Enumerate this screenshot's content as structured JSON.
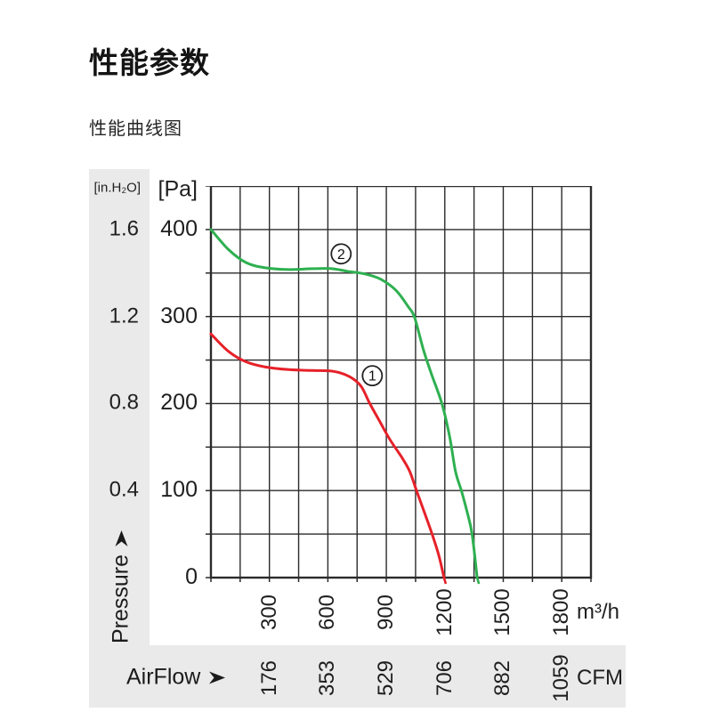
{
  "page": {
    "title": "性能参数",
    "subtitle": "性能曲线图"
  },
  "chart_data": {
    "type": "line",
    "title": "性能曲线图",
    "x_axis": {
      "name": "AirFlow",
      "unit_primary": "m³/h",
      "unit_secondary": "CFM",
      "range_m3h": [
        0,
        1950
      ],
      "grid_step_m3h": 150,
      "ticks_m3h": [
        300,
        600,
        900,
        1200,
        1500,
        1800
      ],
      "ticks_cfm": [
        176,
        353,
        529,
        706,
        882,
        1059
      ]
    },
    "y_axis": {
      "name": "Pressure",
      "unit_primary": "[Pa]",
      "unit_secondary": "[in.H₂O]",
      "range_pa": [
        0,
        450
      ],
      "grid_step_pa": 50,
      "ticks_pa": [
        400,
        300,
        200,
        100,
        0
      ],
      "ticks_inh2o": [
        "1.6",
        "1.2",
        "0.8",
        "0.4"
      ]
    },
    "grid": true,
    "legend_position": "on-curve-circled-numbers",
    "series": [
      {
        "id": "curve-1",
        "label": "1",
        "color": "#e62129",
        "marker_pos_m3h_pa": [
          828,
          232
        ],
        "points_m3h_pa": [
          [
            0,
            280
          ],
          [
            90,
            260
          ],
          [
            180,
            248
          ],
          [
            280,
            242
          ],
          [
            400,
            239
          ],
          [
            520,
            238
          ],
          [
            630,
            237
          ],
          [
            710,
            231
          ],
          [
            770,
            220
          ],
          [
            815,
            200
          ],
          [
            870,
            178
          ],
          [
            920,
            158
          ],
          [
            980,
            138
          ],
          [
            1020,
            122
          ],
          [
            1055,
            100
          ],
          [
            1100,
            72
          ],
          [
            1135,
            50
          ],
          [
            1170,
            25
          ],
          [
            1196,
            0
          ]
        ]
      },
      {
        "id": "curve-2",
        "label": "2",
        "color": "#2eb050",
        "marker_pos_m3h_pa": [
          668,
          372
        ],
        "points_m3h_pa": [
          [
            0,
            400
          ],
          [
            90,
            377
          ],
          [
            180,
            362
          ],
          [
            280,
            356
          ],
          [
            400,
            354
          ],
          [
            520,
            355
          ],
          [
            620,
            355
          ],
          [
            700,
            352
          ],
          [
            790,
            349
          ],
          [
            870,
            343
          ],
          [
            950,
            330
          ],
          [
            1010,
            312
          ],
          [
            1045,
            299
          ],
          [
            1090,
            262
          ],
          [
            1130,
            235
          ],
          [
            1185,
            200
          ],
          [
            1225,
            162
          ],
          [
            1255,
            122
          ],
          [
            1285,
            100
          ],
          [
            1315,
            75
          ],
          [
            1340,
            50
          ],
          [
            1366,
            0
          ]
        ]
      }
    ],
    "colors": {
      "grid": "#2b2b2b",
      "frame": "#2b2b2b",
      "panel": "#eaeaea",
      "text": "#1f1f1f"
    }
  }
}
